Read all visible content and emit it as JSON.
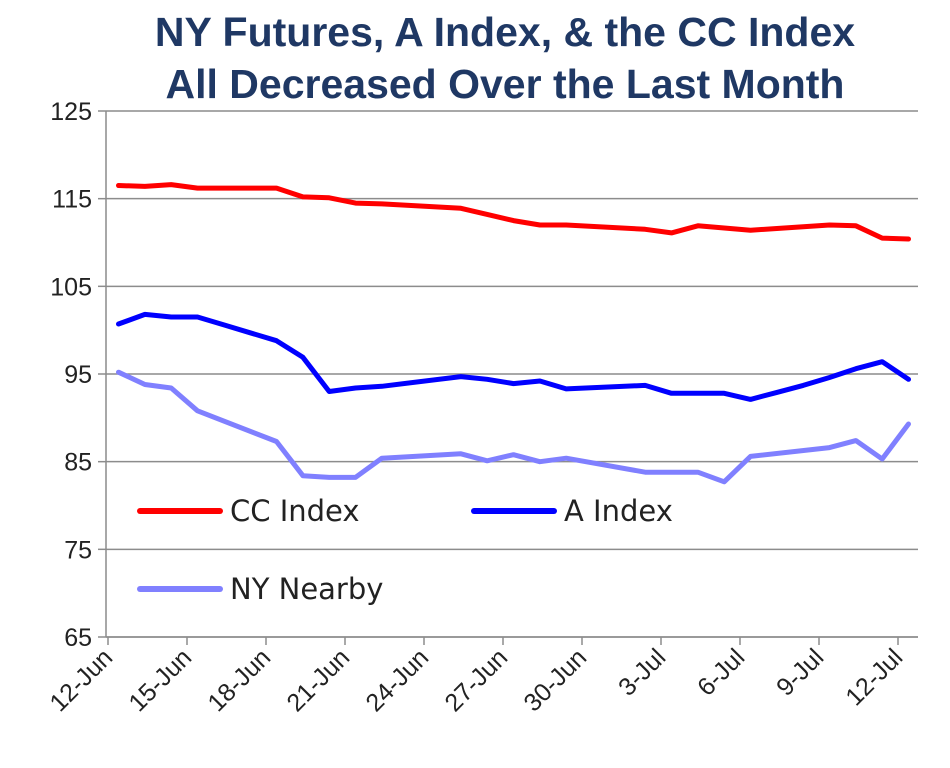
{
  "chart_data": {
    "type": "line",
    "title_lines": [
      "NY Futures, A Index, & the CC Index",
      "All Decreased Over the Last Month"
    ],
    "xlabel": "",
    "ylabel": "",
    "ylim": [
      65,
      125
    ],
    "yticks": [
      65,
      75,
      85,
      95,
      105,
      115,
      125
    ],
    "xlim": [
      0,
      30
    ],
    "xticks": [
      {
        "label": "12-Jun",
        "day": 0
      },
      {
        "label": "15-Jun",
        "day": 3
      },
      {
        "label": "18-Jun",
        "day": 6
      },
      {
        "label": "21-Jun",
        "day": 9
      },
      {
        "label": "24-Jun",
        "day": 12
      },
      {
        "label": "27-Jun",
        "day": 15
      },
      {
        "label": "30-Jun",
        "day": 18
      },
      {
        "label": "3-Jul",
        "day": 21
      },
      {
        "label": "6-Jul",
        "day": 24
      },
      {
        "label": "9-Jul",
        "day": 27
      },
      {
        "label": "12-Jul",
        "day": 30
      }
    ],
    "grid": true,
    "legend_position": "inside-bottom-left",
    "series": [
      {
        "name": "CC Index",
        "color": "#ff0000",
        "points": [
          [
            0.4,
            116.5
          ],
          [
            1.4,
            116.4
          ],
          [
            2.4,
            116.6
          ],
          [
            3.4,
            116.2
          ],
          [
            6.4,
            116.2
          ],
          [
            7.4,
            115.2
          ],
          [
            8.4,
            115.1
          ],
          [
            9.4,
            114.5
          ],
          [
            10.4,
            114.4
          ],
          [
            13.4,
            113.9
          ],
          [
            14.4,
            113.2
          ],
          [
            15.4,
            112.5
          ],
          [
            16.4,
            112.0
          ],
          [
            17.4,
            112.0
          ],
          [
            20.4,
            111.5
          ],
          [
            21.4,
            111.1
          ],
          [
            22.4,
            111.9
          ],
          [
            24.4,
            111.4
          ],
          [
            25.4,
            111.6
          ],
          [
            26.4,
            111.8
          ],
          [
            27.4,
            112.0
          ],
          [
            28.4,
            111.9
          ],
          [
            29.4,
            110.5
          ],
          [
            30.4,
            110.4
          ]
        ]
      },
      {
        "name": "A Index",
        "color": "#0000ff",
        "points": [
          [
            0.4,
            100.7
          ],
          [
            1.4,
            101.8
          ],
          [
            2.4,
            101.5
          ],
          [
            3.4,
            101.5
          ],
          [
            4.4,
            100.6
          ],
          [
            5.4,
            99.7
          ],
          [
            6.4,
            98.8
          ],
          [
            7.4,
            96.9
          ],
          [
            8.4,
            93.0
          ],
          [
            9.4,
            93.4
          ],
          [
            10.4,
            93.6
          ],
          [
            13.4,
            94.7
          ],
          [
            14.4,
            94.4
          ],
          [
            15.4,
            93.9
          ],
          [
            16.4,
            94.2
          ],
          [
            17.4,
            93.3
          ],
          [
            20.4,
            93.7
          ],
          [
            21.4,
            92.8
          ],
          [
            23.4,
            92.8
          ],
          [
            24.4,
            92.1
          ],
          [
            25.4,
            92.9
          ],
          [
            26.4,
            93.7
          ],
          [
            27.4,
            94.6
          ],
          [
            28.4,
            95.6
          ],
          [
            29.4,
            96.4
          ],
          [
            30.4,
            94.4
          ]
        ]
      },
      {
        "name": "NY Nearby",
        "color": "#8080ff",
        "points": [
          [
            0.4,
            95.2
          ],
          [
            1.4,
            93.8
          ],
          [
            2.4,
            93.4
          ],
          [
            3.4,
            90.8
          ],
          [
            6.4,
            87.3
          ],
          [
            7.4,
            83.4
          ],
          [
            8.4,
            83.2
          ],
          [
            9.4,
            83.2
          ],
          [
            10.4,
            85.4
          ],
          [
            13.4,
            85.9
          ],
          [
            14.4,
            85.1
          ],
          [
            15.4,
            85.8
          ],
          [
            16.4,
            85.0
          ],
          [
            17.4,
            85.4
          ],
          [
            20.4,
            83.8
          ],
          [
            22.4,
            83.8
          ],
          [
            23.4,
            82.7
          ],
          [
            24.4,
            85.6
          ],
          [
            27.4,
            86.6
          ],
          [
            28.4,
            87.4
          ],
          [
            29.4,
            85.3
          ],
          [
            30.4,
            89.3
          ]
        ]
      }
    ]
  }
}
